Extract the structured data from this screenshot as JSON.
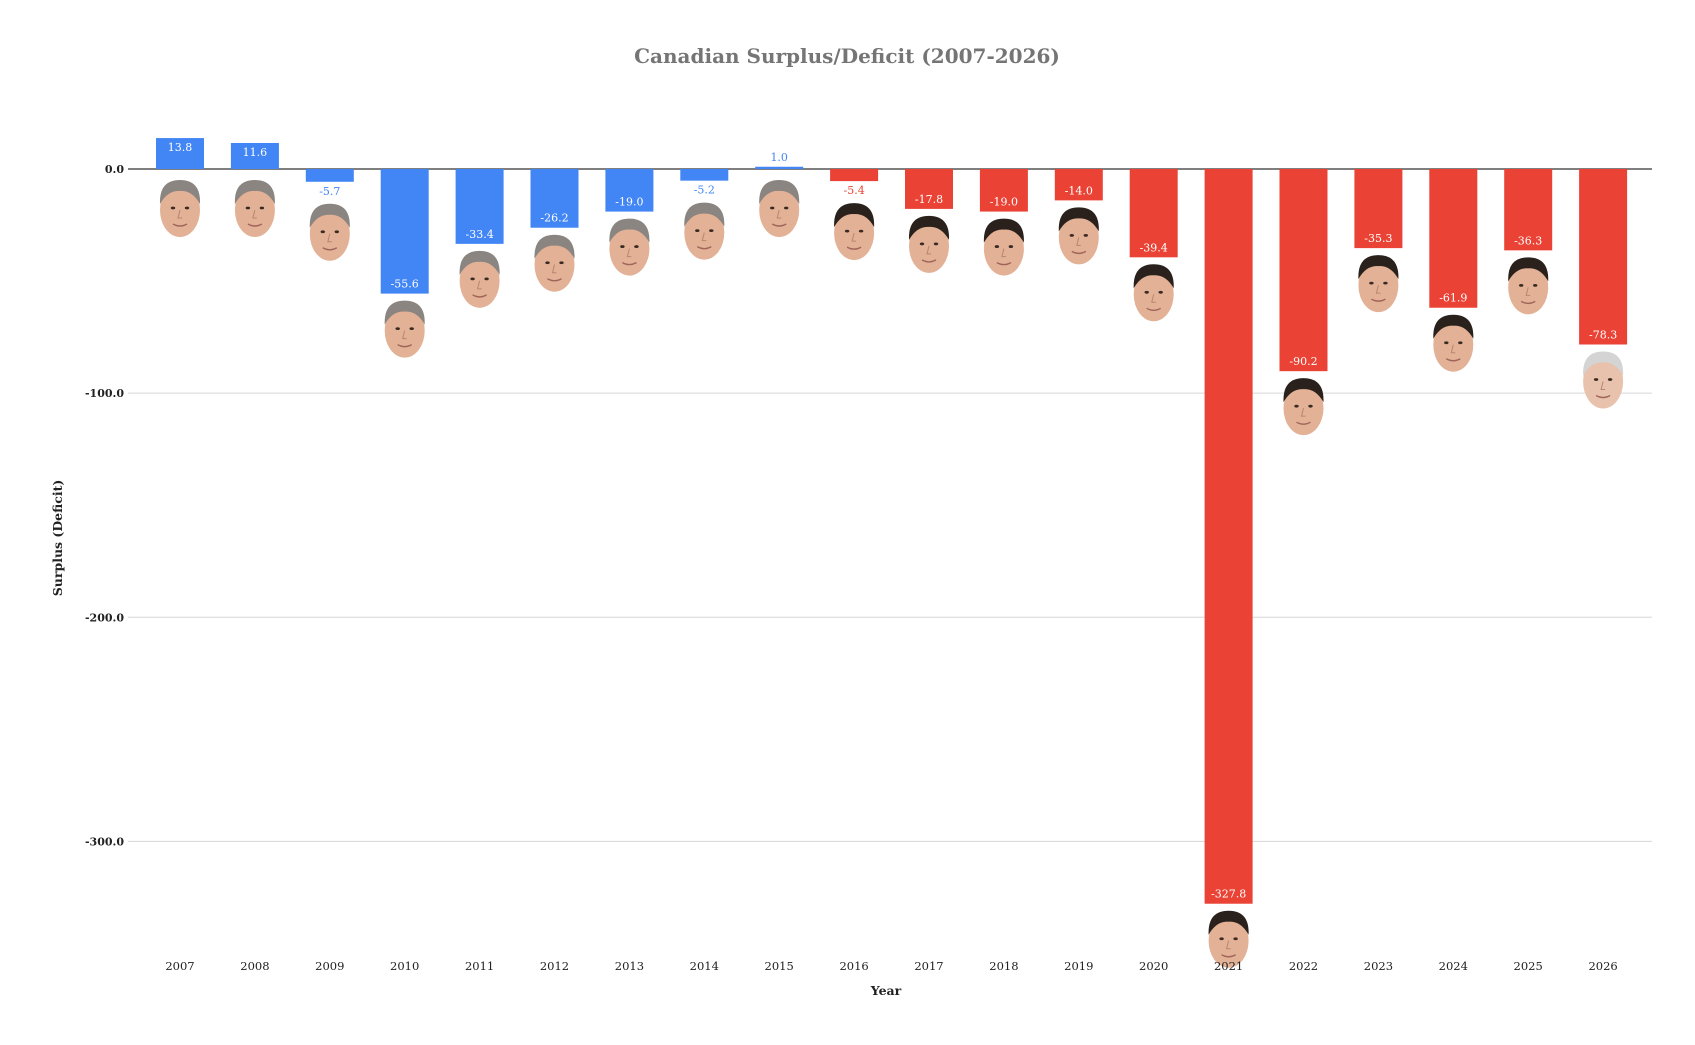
{
  "chart_data": {
    "type": "bar",
    "title": "Canadian Surplus/Deficit (2007-2026)",
    "xlabel": "Year",
    "ylabel": "Surplus (Deficit)",
    "categories": [
      "2007",
      "2008",
      "2009",
      "2010",
      "2011",
      "2012",
      "2013",
      "2014",
      "2015",
      "2016",
      "2017",
      "2018",
      "2019",
      "2020",
      "2021",
      "2022",
      "2023",
      "2024",
      "2025",
      "2026"
    ],
    "values": [
      13.8,
      11.6,
      -5.7,
      -55.6,
      -33.4,
      -26.2,
      -19.0,
      -5.2,
      1.0,
      -5.4,
      -17.8,
      -19.0,
      -14.0,
      -39.4,
      -327.8,
      -90.2,
      -35.3,
      -61.9,
      -36.3,
      -78.3
    ],
    "value_labels": [
      "13.8",
      "11.6",
      "-5.7",
      "-55.6",
      "-33.4",
      "-26.2",
      "-19.0",
      "-5.2",
      "1.0",
      "-5.4",
      "-17.8",
      "-19.0",
      "-14.0",
      "-39.4",
      "-327.8",
      "-90.2",
      "-35.3",
      "-61.9",
      "-36.3",
      "-78.3"
    ],
    "bar_colors": [
      "#4285f4",
      "#4285f4",
      "#4285f4",
      "#4285f4",
      "#4285f4",
      "#4285f4",
      "#4285f4",
      "#4285f4",
      "#4285f4",
      "#ea4335",
      "#ea4335",
      "#ea4335",
      "#ea4335",
      "#ea4335",
      "#ea4335",
      "#ea4335",
      "#ea4335",
      "#ea4335",
      "#ea4335",
      "#ea4335"
    ],
    "face_icons": [
      "face-icon-a",
      "face-icon-a",
      "face-icon-a",
      "face-icon-a",
      "face-icon-a",
      "face-icon-a",
      "face-icon-a",
      "face-icon-a",
      "face-icon-a",
      "face-icon-b",
      "face-icon-b",
      "face-icon-b",
      "face-icon-b",
      "face-icon-b",
      "face-icon-b",
      "face-icon-b",
      "face-icon-b",
      "face-icon-b",
      "face-icon-b",
      "face-icon-c"
    ],
    "y_ticks": [
      0,
      -100,
      -200,
      -300
    ],
    "y_tick_labels": [
      "0.0",
      "-100.0",
      "-200.0",
      "-300.0"
    ],
    "ylim": [
      -348,
      22
    ],
    "grid": true,
    "legend": "none"
  }
}
